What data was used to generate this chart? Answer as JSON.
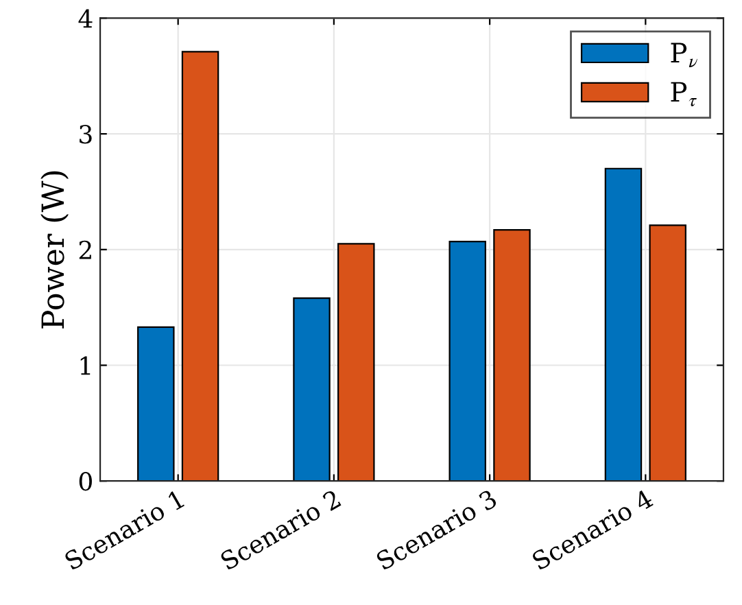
{
  "chart_data": {
    "type": "bar",
    "ylabel": "Power (W)",
    "categories": [
      "Scenario 1",
      "Scenario 2",
      "Scenario 3",
      "Scenario 4"
    ],
    "series": [
      {
        "name": "P$_{ν}$",
        "color": "#0072bd",
        "values": [
          1.33,
          1.58,
          2.07,
          2.7
        ]
      },
      {
        "name": "P$_{τ}$",
        "color": "#d95319",
        "values": [
          3.71,
          2.05,
          2.17,
          2.21
        ]
      }
    ],
    "ylim": [
      0,
      4
    ],
    "yticks": [
      0,
      1,
      2,
      3,
      4
    ],
    "grid": true,
    "legend": "top right"
  }
}
